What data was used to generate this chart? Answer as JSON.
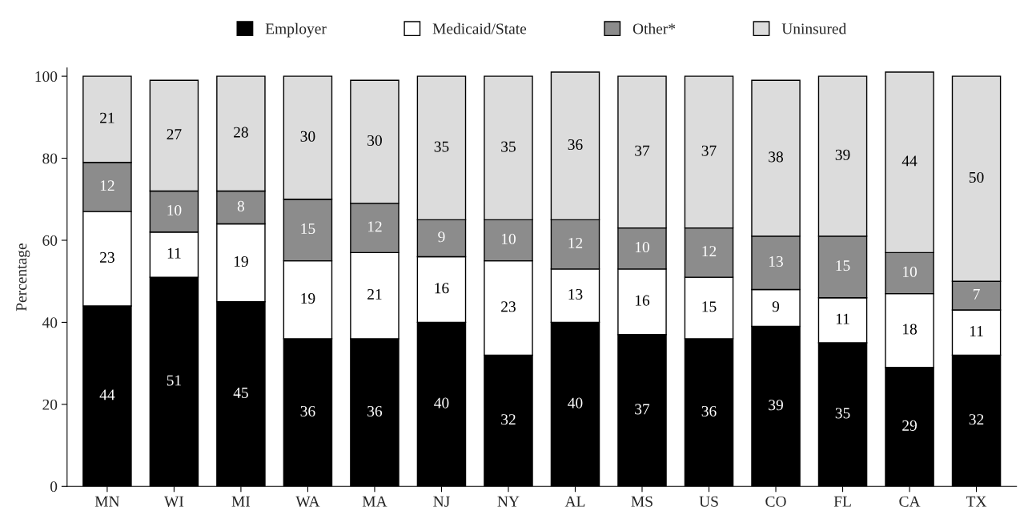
{
  "chart_data": {
    "type": "bar",
    "stacked": true,
    "ylabel": "Percentage",
    "categories": [
      "MN",
      "WI",
      "MI",
      "WA",
      "MA",
      "NJ",
      "NY",
      "AL",
      "MS",
      "US",
      "CO",
      "FL",
      "CA",
      "TX"
    ],
    "series": [
      {
        "name": "Employer",
        "color": "#000000",
        "values": [
          44,
          51,
          45,
          36,
          36,
          40,
          32,
          40,
          37,
          36,
          39,
          35,
          29,
          32
        ]
      },
      {
        "name": "Medicaid/State",
        "color": "#ffffff",
        "values": [
          23,
          11,
          19,
          19,
          21,
          16,
          23,
          13,
          16,
          15,
          9,
          11,
          18,
          11
        ]
      },
      {
        "name": "Other*",
        "color": "#8c8c8c",
        "values": [
          12,
          10,
          8,
          15,
          12,
          9,
          10,
          12,
          10,
          12,
          13,
          15,
          10,
          7
        ]
      },
      {
        "name": "Uninsured",
        "color": "#dcdcdc",
        "values": [
          21,
          27,
          28,
          30,
          30,
          35,
          35,
          36,
          37,
          37,
          38,
          39,
          44,
          50
        ]
      }
    ],
    "ylim": [
      0,
      102
    ],
    "yticks": [
      0,
      20,
      40,
      60,
      80,
      100
    ],
    "data_labels": true,
    "legend": "top",
    "grid": false
  }
}
